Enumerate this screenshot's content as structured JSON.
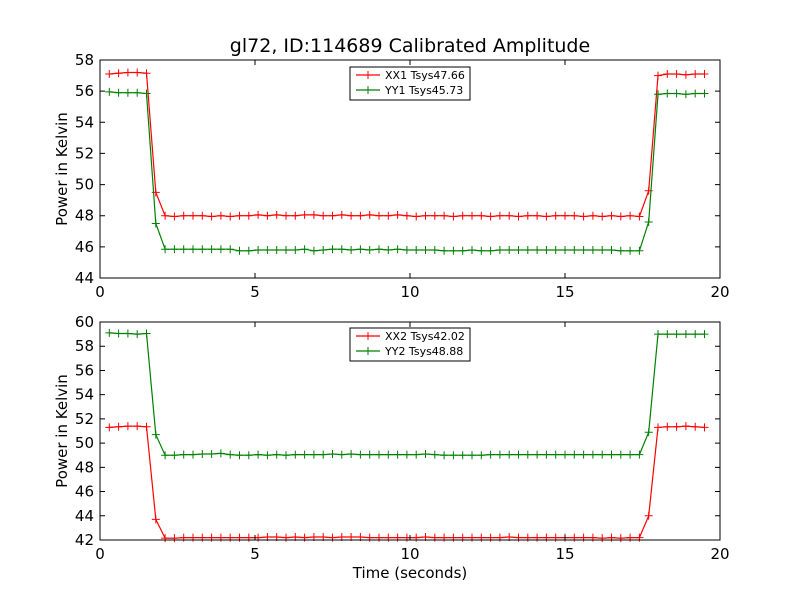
{
  "title": "gl72, ID:114689 Calibrated Amplitude",
  "shared_xlabel": "Time (seconds)",
  "chart_data": [
    {
      "type": "line",
      "ylabel": "Power in Kelvin",
      "xlabel": "",
      "xlim": [
        0,
        20
      ],
      "ylim": [
        44,
        58
      ],
      "xticks": [
        0,
        5,
        10,
        15,
        20
      ],
      "yticks": [
        44,
        46,
        48,
        50,
        52,
        54,
        56,
        58
      ],
      "grid": false,
      "legend_position": "top-center",
      "x": [
        0.3,
        0.6,
        0.9,
        1.2,
        1.5,
        1.8,
        2.1,
        2.4,
        2.7,
        3.0,
        3.3,
        3.6,
        3.9,
        4.2,
        4.5,
        4.8,
        5.1,
        5.4,
        5.7,
        6.0,
        6.3,
        6.6,
        6.9,
        7.2,
        7.5,
        7.8,
        8.1,
        8.4,
        8.7,
        9.0,
        9.3,
        9.6,
        9.9,
        10.2,
        10.5,
        10.8,
        11.1,
        11.4,
        11.7,
        12.0,
        12.3,
        12.6,
        12.9,
        13.2,
        13.5,
        13.8,
        14.1,
        14.4,
        14.7,
        15.0,
        15.3,
        15.6,
        15.9,
        16.2,
        16.5,
        16.8,
        17.1,
        17.4,
        17.7,
        18.0,
        18.3,
        18.6,
        18.9,
        19.2,
        19.5
      ],
      "series": [
        {
          "name": "XX1 Tsys47.66",
          "color": "#ff0000",
          "values": [
            57.1,
            57.15,
            57.2,
            57.2,
            57.15,
            49.5,
            48.0,
            47.95,
            48.0,
            48.0,
            48.0,
            47.95,
            48.0,
            47.95,
            48.0,
            48.0,
            48.05,
            48.0,
            48.05,
            48.0,
            48.0,
            48.05,
            48.05,
            48.0,
            48.0,
            48.05,
            48.0,
            48.0,
            48.05,
            48.0,
            48.0,
            48.05,
            48.0,
            47.95,
            48.0,
            48.0,
            48.0,
            47.95,
            48.0,
            48.0,
            48.0,
            47.95,
            48.0,
            48.0,
            47.95,
            48.0,
            48.0,
            47.95,
            48.0,
            48.0,
            48.0,
            47.95,
            48.0,
            47.95,
            48.0,
            47.95,
            48.0,
            47.95,
            49.6,
            57.0,
            57.1,
            57.1,
            57.05,
            57.1,
            57.1
          ]
        },
        {
          "name": "YY1 Tsys45.73",
          "color": "#008000",
          "values": [
            55.95,
            55.9,
            55.9,
            55.9,
            55.85,
            47.5,
            45.85,
            45.85,
            45.85,
            45.85,
            45.85,
            45.85,
            45.85,
            45.85,
            45.75,
            45.75,
            45.8,
            45.8,
            45.8,
            45.8,
            45.8,
            45.85,
            45.75,
            45.8,
            45.85,
            45.85,
            45.8,
            45.85,
            45.8,
            45.85,
            45.8,
            45.85,
            45.8,
            45.8,
            45.8,
            45.8,
            45.75,
            45.75,
            45.75,
            45.8,
            45.75,
            45.75,
            45.8,
            45.8,
            45.8,
            45.8,
            45.8,
            45.8,
            45.8,
            45.8,
            45.8,
            45.8,
            45.8,
            45.8,
            45.8,
            45.75,
            45.75,
            45.75,
            47.6,
            55.8,
            55.85,
            55.85,
            55.8,
            55.85,
            55.85
          ]
        }
      ]
    },
    {
      "type": "line",
      "ylabel": "Power in Kelvin",
      "xlabel": "Time (seconds)",
      "xlim": [
        0,
        20
      ],
      "ylim": [
        42,
        60
      ],
      "xticks": [
        0,
        5,
        10,
        15,
        20
      ],
      "yticks": [
        42,
        44,
        46,
        48,
        50,
        52,
        54,
        56,
        58,
        60
      ],
      "grid": false,
      "legend_position": "top-center",
      "x": [
        0.3,
        0.6,
        0.9,
        1.2,
        1.5,
        1.8,
        2.1,
        2.4,
        2.7,
        3.0,
        3.3,
        3.6,
        3.9,
        4.2,
        4.5,
        4.8,
        5.1,
        5.4,
        5.7,
        6.0,
        6.3,
        6.6,
        6.9,
        7.2,
        7.5,
        7.8,
        8.1,
        8.4,
        8.7,
        9.0,
        9.3,
        9.6,
        9.9,
        10.2,
        10.5,
        10.8,
        11.1,
        11.4,
        11.7,
        12.0,
        12.3,
        12.6,
        12.9,
        13.2,
        13.5,
        13.8,
        14.1,
        14.4,
        14.7,
        15.0,
        15.3,
        15.6,
        15.9,
        16.2,
        16.5,
        16.8,
        17.1,
        17.4,
        17.7,
        18.0,
        18.3,
        18.6,
        18.9,
        19.2,
        19.5
      ],
      "series": [
        {
          "name": "XX2 Tsys42.02",
          "color": "#ff0000",
          "values": [
            51.3,
            51.35,
            51.4,
            51.4,
            51.35,
            43.7,
            42.15,
            42.15,
            42.2,
            42.2,
            42.2,
            42.2,
            42.2,
            42.2,
            42.2,
            42.2,
            42.2,
            42.25,
            42.25,
            42.2,
            42.25,
            42.2,
            42.25,
            42.25,
            42.2,
            42.25,
            42.25,
            42.25,
            42.2,
            42.2,
            42.2,
            42.2,
            42.2,
            42.2,
            42.25,
            42.2,
            42.2,
            42.2,
            42.2,
            42.2,
            42.2,
            42.2,
            42.2,
            42.25,
            42.2,
            42.2,
            42.2,
            42.2,
            42.2,
            42.2,
            42.2,
            42.2,
            42.2,
            42.15,
            42.2,
            42.15,
            42.2,
            42.2,
            44.0,
            51.3,
            51.35,
            51.35,
            51.4,
            51.35,
            51.3
          ]
        },
        {
          "name": "YY2 Tsys48.88",
          "color": "#008000",
          "values": [
            59.1,
            59.05,
            59.05,
            59.0,
            59.05,
            50.7,
            49.0,
            49.0,
            49.05,
            49.05,
            49.1,
            49.1,
            49.15,
            49.05,
            49.0,
            49.0,
            49.05,
            49.0,
            49.05,
            49.0,
            49.05,
            49.05,
            49.05,
            49.05,
            49.1,
            49.05,
            49.1,
            49.05,
            49.05,
            49.05,
            49.05,
            49.05,
            49.05,
            49.05,
            49.1,
            49.05,
            49.0,
            49.0,
            49.0,
            49.0,
            49.0,
            49.05,
            49.05,
            49.05,
            49.05,
            49.05,
            49.05,
            49.05,
            49.05,
            49.05,
            49.05,
            49.05,
            49.05,
            49.05,
            49.05,
            49.05,
            49.05,
            49.05,
            50.9,
            59.0,
            59.0,
            59.0,
            59.0,
            59.0,
            59.0
          ]
        }
      ]
    }
  ]
}
